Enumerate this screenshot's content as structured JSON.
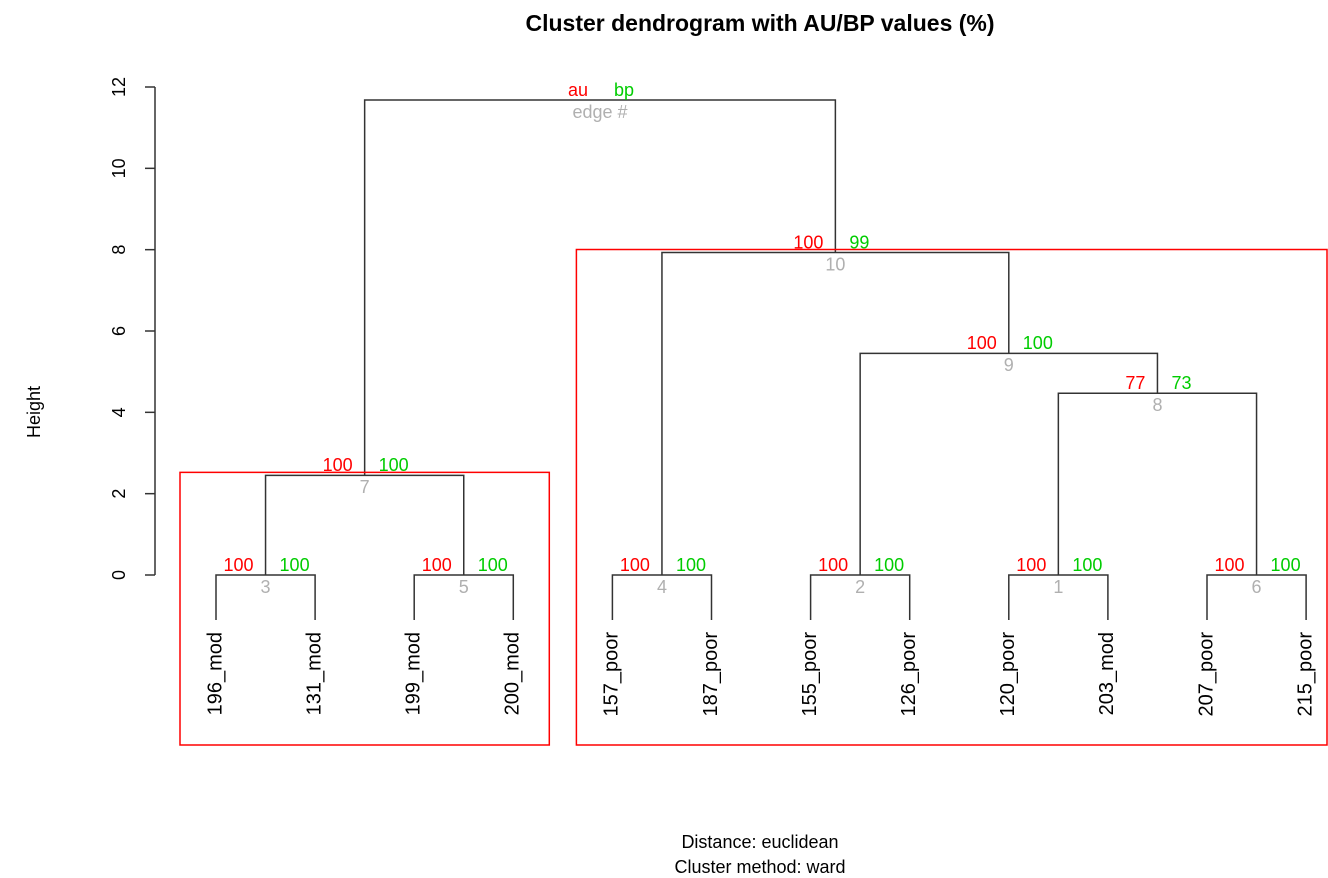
{
  "chart_data": {
    "type": "dendrogram",
    "title": "Cluster dendrogram with AU/BP values (%)",
    "ylabel": "Height",
    "xlabel": [
      "Distance:  euclidean",
      "Cluster method: ward"
    ],
    "ylim": [
      0,
      12
    ],
    "yticks": [
      0,
      2,
      4,
      6,
      8,
      10,
      12
    ],
    "leaves": [
      "196_mod",
      "131_mod",
      "199_mod",
      "200_mod",
      "157_poor",
      "187_poor",
      "155_poor",
      "126_poor",
      "120_poor",
      "203_mod",
      "207_poor",
      "215_poor"
    ],
    "merges": [
      {
        "children": [
          -9,
          -10
        ],
        "height": 0,
        "au": 100,
        "bp": 100,
        "edge": 1
      },
      {
        "children": [
          -7,
          -8
        ],
        "height": 0,
        "au": 100,
        "bp": 100,
        "edge": 2
      },
      {
        "children": [
          -1,
          -2
        ],
        "height": 0,
        "au": 100,
        "bp": 100,
        "edge": 3
      },
      {
        "children": [
          -5,
          -6
        ],
        "height": 0,
        "au": 100,
        "bp": 100,
        "edge": 4
      },
      {
        "children": [
          -3,
          -4
        ],
        "height": 0,
        "au": 100,
        "bp": 100,
        "edge": 5
      },
      {
        "children": [
          -11,
          -12
        ],
        "height": 0,
        "au": 100,
        "bp": 100,
        "edge": 6
      },
      {
        "children": [
          3,
          5
        ],
        "height": 2.45,
        "au": 100,
        "bp": 100,
        "edge": 7
      },
      {
        "children": [
          1,
          6
        ],
        "height": 4.47,
        "au": 77,
        "bp": 73,
        "edge": 8
      },
      {
        "children": [
          2,
          8
        ],
        "height": 5.45,
        "au": 100,
        "bp": 100,
        "edge": 9
      },
      {
        "children": [
          4,
          9
        ],
        "height": 7.93,
        "au": 100,
        "bp": 99,
        "edge": 10
      },
      {
        "children": [
          7,
          10
        ],
        "height": 11.68
      }
    ],
    "legend": {
      "au": "au",
      "bp": "bp",
      "edge": "edge #"
    },
    "au_color": "#ff0000",
    "bp_color": "#00cc00",
    "edge_color": "#b0b0b0",
    "line_color": "#333333",
    "highlight": [
      7,
      10
    ],
    "highlight_color": "#ff0000"
  }
}
